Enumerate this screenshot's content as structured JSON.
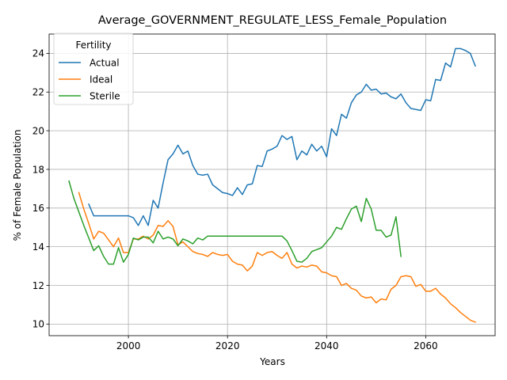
{
  "chart_data": {
    "type": "line",
    "title": "Average_GOVERNMENT_REGULATE_LESS_Female_Population",
    "xlabel": "Years",
    "ylabel": "% of Female Population",
    "xlim": [
      1984,
      2074
    ],
    "ylim": [
      9.4,
      25.0
    ],
    "xticks": [
      2000,
      2020,
      2040,
      2060
    ],
    "yticks": [
      10,
      12,
      14,
      16,
      18,
      20,
      22,
      24
    ],
    "grid": true,
    "legend": {
      "title": "Fertility",
      "position": "top-left"
    },
    "series": [
      {
        "name": "Actual",
        "color": "#1f77b4",
        "x": [
          1992,
          1993,
          1994,
          1995,
          1996,
          1997,
          1998,
          1999,
          2000,
          2001,
          2002,
          2003,
          2004,
          2005,
          2006,
          2007,
          2008,
          2009,
          2010,
          2011,
          2012,
          2013,
          2014,
          2015,
          2016,
          2017,
          2018,
          2019,
          2020,
          2021,
          2022,
          2023,
          2024,
          2025,
          2026,
          2027,
          2028,
          2029,
          2030,
          2031,
          2032,
          2033,
          2034,
          2035,
          2036,
          2037,
          2038,
          2039,
          2040,
          2041,
          2042,
          2043,
          2044,
          2045,
          2046,
          2047,
          2048,
          2049,
          2050,
          2051,
          2052,
          2053,
          2054,
          2055,
          2056,
          2057,
          2058,
          2059,
          2060,
          2061,
          2062,
          2063,
          2064,
          2065,
          2066,
          2067,
          2068,
          2069,
          2070
        ],
        "values": [
          16.2,
          15.6,
          15.6,
          15.6,
          15.6,
          15.6,
          15.6,
          15.6,
          15.6,
          15.5,
          15.1,
          15.6,
          15.1,
          16.4,
          16.0,
          17.3,
          18.5,
          18.8,
          19.25,
          18.8,
          18.95,
          18.2,
          17.75,
          17.7,
          17.75,
          17.2,
          17.0,
          16.8,
          16.75,
          16.65,
          17.05,
          16.7,
          17.2,
          17.25,
          18.2,
          18.15,
          18.95,
          19.05,
          19.2,
          19.75,
          19.55,
          19.7,
          18.5,
          18.95,
          18.75,
          19.3,
          18.95,
          19.2,
          18.65,
          20.1,
          19.75,
          20.85,
          20.65,
          21.45,
          21.85,
          22.0,
          22.4,
          22.1,
          22.15,
          21.9,
          21.95,
          21.75,
          21.65,
          21.9,
          21.45,
          21.15,
          21.1,
          21.05,
          21.6,
          21.55,
          22.65,
          22.6,
          23.5,
          23.3,
          24.25,
          24.25,
          24.15,
          24.0,
          23.35
        ]
      },
      {
        "name": "Ideal",
        "color": "#ff7f0e",
        "x": [
          1990,
          1991,
          1992,
          1993,
          1994,
          1995,
          1996,
          1997,
          1998,
          1999,
          2000,
          2001,
          2002,
          2003,
          2004,
          2005,
          2006,
          2007,
          2008,
          2009,
          2010,
          2011,
          2012,
          2013,
          2014,
          2015,
          2016,
          2017,
          2018,
          2019,
          2020,
          2021,
          2022,
          2023,
          2024,
          2025,
          2026,
          2027,
          2028,
          2029,
          2030,
          2031,
          2032,
          2033,
          2034,
          2035,
          2036,
          2037,
          2038,
          2039,
          2040,
          2041,
          2042,
          2043,
          2044,
          2045,
          2046,
          2047,
          2048,
          2049,
          2050,
          2051,
          2052,
          2053,
          2054,
          2055,
          2056,
          2057,
          2058,
          2059,
          2060,
          2061,
          2062,
          2063,
          2064,
          2065,
          2066,
          2067,
          2068,
          2069,
          2070
        ],
        "values": [
          16.8,
          15.95,
          15.2,
          14.4,
          14.8,
          14.7,
          14.35,
          14.0,
          14.45,
          13.7,
          13.7,
          14.4,
          14.4,
          14.55,
          14.4,
          14.6,
          15.1,
          15.05,
          15.35,
          15.05,
          14.1,
          14.25,
          14.0,
          13.75,
          13.65,
          13.6,
          13.5,
          13.7,
          13.6,
          13.55,
          13.6,
          13.25,
          13.1,
          13.05,
          12.75,
          13.0,
          13.7,
          13.55,
          13.7,
          13.75,
          13.55,
          13.4,
          13.7,
          13.1,
          12.9,
          13.0,
          12.95,
          13.05,
          13.0,
          12.7,
          12.65,
          12.5,
          12.45,
          12.0,
          12.1,
          11.85,
          11.75,
          11.45,
          11.35,
          11.4,
          11.1,
          11.3,
          11.25,
          11.8,
          12.0,
          12.45,
          12.5,
          12.45,
          11.95,
          12.05,
          11.7,
          11.7,
          11.85,
          11.55,
          11.35,
          11.05,
          10.85,
          10.6,
          10.4,
          10.2,
          10.1
        ]
      },
      {
        "name": "Sterile",
        "color": "#2ca02c",
        "x": [
          1988,
          1989,
          1990,
          1991,
          1992,
          1993,
          1994,
          1995,
          1996,
          1997,
          1998,
          1999,
          2000,
          2001,
          2002,
          2003,
          2004,
          2005,
          2006,
          2007,
          2008,
          2009,
          2010,
          2011,
          2012,
          2013,
          2014,
          2015,
          2016,
          2017,
          2018,
          2019,
          2020,
          2021,
          2022,
          2023,
          2024,
          2025,
          2026,
          2027,
          2028,
          2029,
          2030,
          2031,
          2032,
          2033,
          2034,
          2035,
          2036,
          2037,
          2038,
          2039,
          2040,
          2041,
          2042,
          2043,
          2044,
          2045,
          2046,
          2047,
          2048,
          2049,
          2050,
          2051,
          2052,
          2053,
          2054,
          2055
        ],
        "values": [
          17.4,
          16.5,
          15.8,
          15.1,
          14.45,
          13.8,
          14.05,
          13.5,
          13.1,
          13.1,
          13.95,
          13.2,
          13.6,
          14.45,
          14.35,
          14.5,
          14.5,
          14.2,
          14.8,
          14.4,
          14.5,
          14.4,
          14.05,
          14.4,
          14.3,
          14.15,
          14.45,
          14.35,
          14.55,
          14.55,
          14.55,
          14.55,
          14.55,
          14.55,
          14.55,
          14.55,
          14.55,
          14.55,
          14.55,
          14.55,
          14.55,
          14.55,
          14.55,
          14.55,
          14.3,
          13.8,
          13.25,
          13.2,
          13.4,
          13.75,
          13.85,
          13.95,
          14.25,
          14.55,
          15.0,
          14.9,
          15.45,
          15.95,
          16.1,
          15.3,
          16.5,
          15.95,
          14.85,
          14.85,
          14.5,
          14.6,
          15.55,
          13.5
        ]
      }
    ]
  }
}
